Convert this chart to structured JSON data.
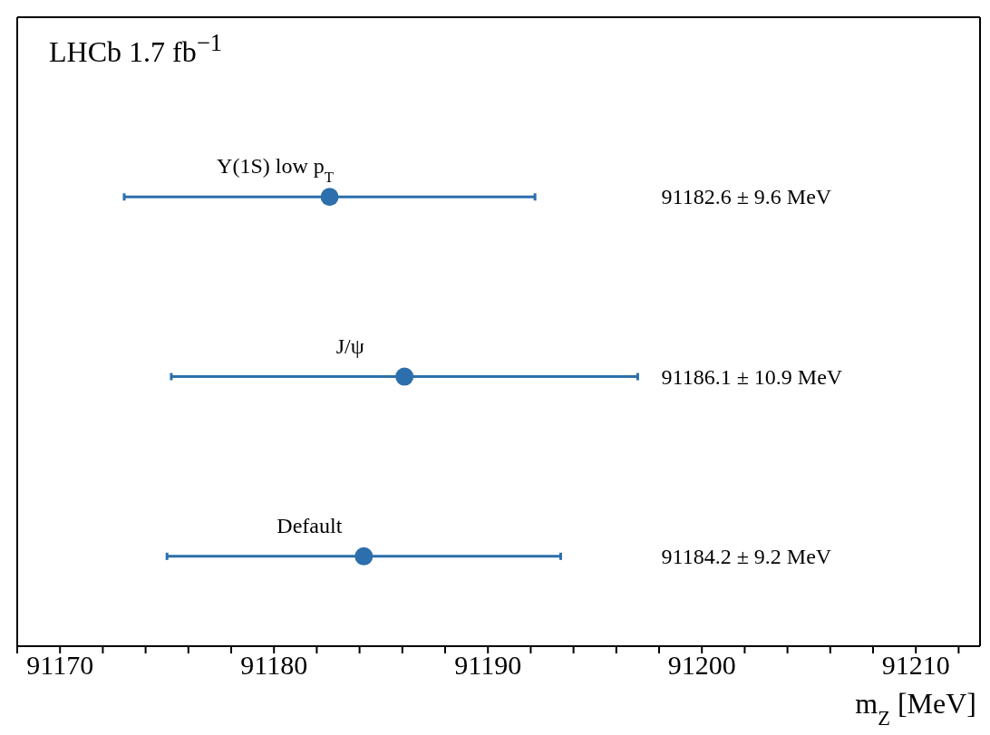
{
  "chart_data": {
    "type": "scatter",
    "orientation": "horizontal",
    "categories": [
      "Υ(1S) low p$_{T}$",
      "J/ψ",
      "Default"
    ],
    "values": [
      91182.6,
      91186.1,
      91184.2
    ],
    "errors": [
      9.6,
      10.9,
      9.2
    ],
    "color": "#2c6fac",
    "marker": "circle",
    "grid": false,
    "legend": false,
    "xlabel": "m$_{Z}$ [MeV]",
    "annotations": [
      "LHCb 1.7 fb$^{−1}$",
      "91182.6 ± 9.6 MeV",
      "91186.1 ± 10.9 MeV",
      "91184.2 ± 9.2 MeV"
    ],
    "xlim": [
      91168,
      91213
    ],
    "xticks": [
      {
        "value": 91168,
        "label": null
      },
      91170,
      {
        "value": 91172,
        "label": null
      },
      {
        "value": 91174,
        "label": null
      },
      {
        "value": 91176,
        "label": null
      },
      {
        "value": 91178,
        "label": null
      },
      91180,
      {
        "value": 91182,
        "label": null
      },
      {
        "value": 91184,
        "label": null
      },
      {
        "value": 91186,
        "label": null
      },
      {
        "value": 91188,
        "label": null
      },
      91190,
      {
        "value": 91192,
        "label": null
      },
      {
        "value": 91194,
        "label": null
      },
      {
        "value": 91196,
        "label": null
      },
      {
        "value": 91198,
        "label": null
      },
      91200,
      {
        "value": 91202,
        "label": null
      },
      {
        "value": 91204,
        "label": null
      },
      {
        "value": 91206,
        "label": null
      },
      {
        "value": 91208,
        "label": null
      },
      91210,
      {
        "value": 91212,
        "label": null
      }
    ]
  }
}
